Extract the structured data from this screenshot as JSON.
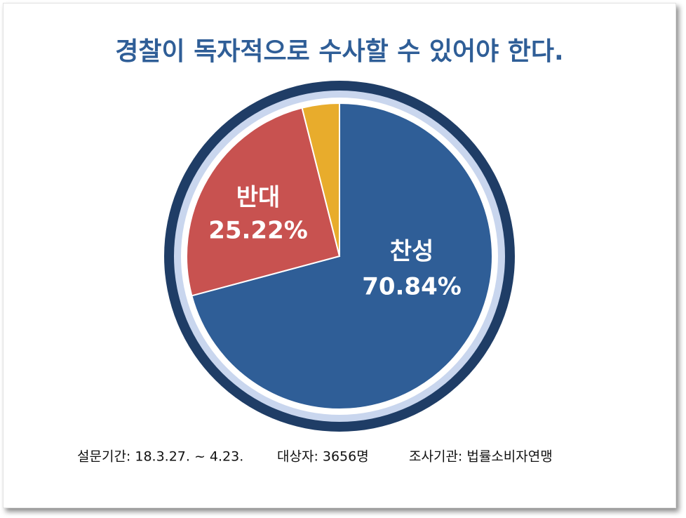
{
  "chart_data": {
    "type": "pie",
    "title": "경찰이 독자적으로 수사할 수 있어야 한다.",
    "categories": [
      "찬성",
      "반대",
      null
    ],
    "values": [
      70.84,
      25.22,
      3.94
    ],
    "value_labels": [
      "70.84%",
      "25.22%",
      null
    ],
    "colors": [
      "#2f5e97",
      "#c85250",
      "#e8ac2c"
    ],
    "footnote": [
      "설문기간: 18.3.27. ~ 4.23.",
      "대상자: 3656명",
      "조사기관: 법률소비자연맹"
    ]
  }
}
